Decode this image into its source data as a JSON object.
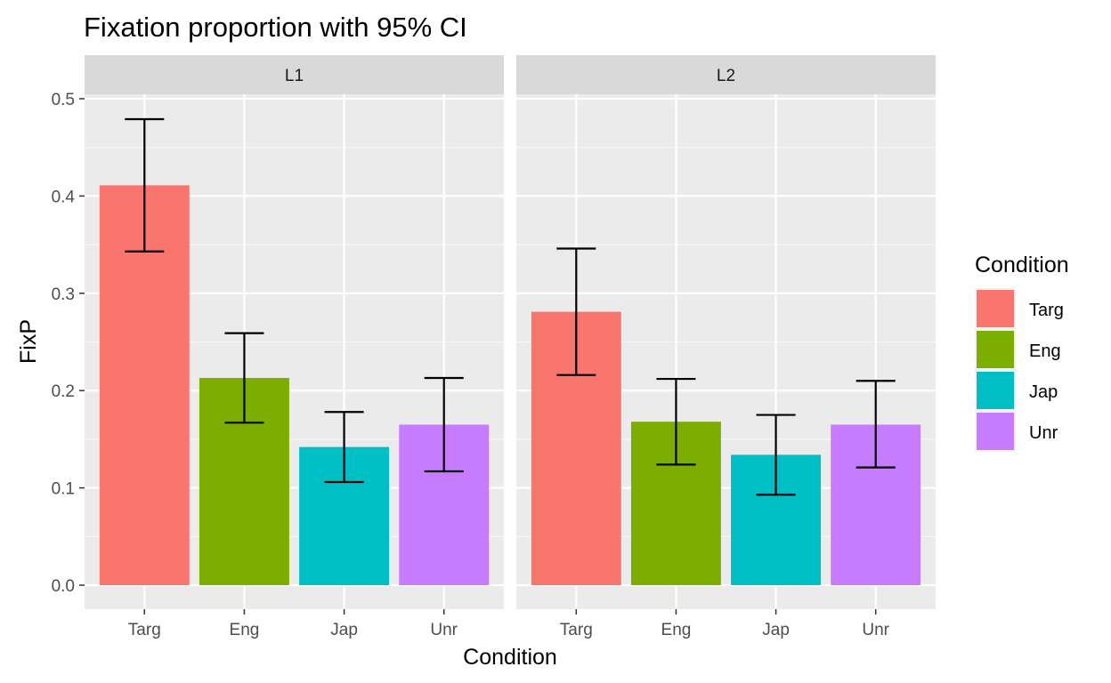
{
  "chart_data": {
    "type": "bar",
    "title": "Fixation proportion with 95% CI",
    "xlabel": "Condition",
    "ylabel": "FixP",
    "ylim": [
      0,
      0.5
    ],
    "yticks": [
      "0.0",
      "0.1",
      "0.2",
      "0.3",
      "0.4",
      "0.5"
    ],
    "categories": [
      "Targ",
      "Eng",
      "Jap",
      "Unr"
    ],
    "colors": [
      "#F8766D",
      "#7CAE00",
      "#00BFC4",
      "#C77CFF"
    ],
    "grid": true,
    "legend": {
      "title": "Condition",
      "position": "right",
      "entries": [
        "Targ",
        "Eng",
        "Jap",
        "Unr"
      ]
    },
    "panels": [
      {
        "label": "L1",
        "values": [
          0.411,
          0.213,
          0.142,
          0.165
        ],
        "ci_low": [
          0.343,
          0.167,
          0.106,
          0.117
        ],
        "ci_high": [
          0.479,
          0.259,
          0.178,
          0.213
        ]
      },
      {
        "label": "L2",
        "values": [
          0.281,
          0.168,
          0.134,
          0.165
        ],
        "ci_low": [
          0.216,
          0.124,
          0.093,
          0.121
        ],
        "ci_high": [
          0.346,
          0.212,
          0.175,
          0.21
        ]
      }
    ]
  }
}
